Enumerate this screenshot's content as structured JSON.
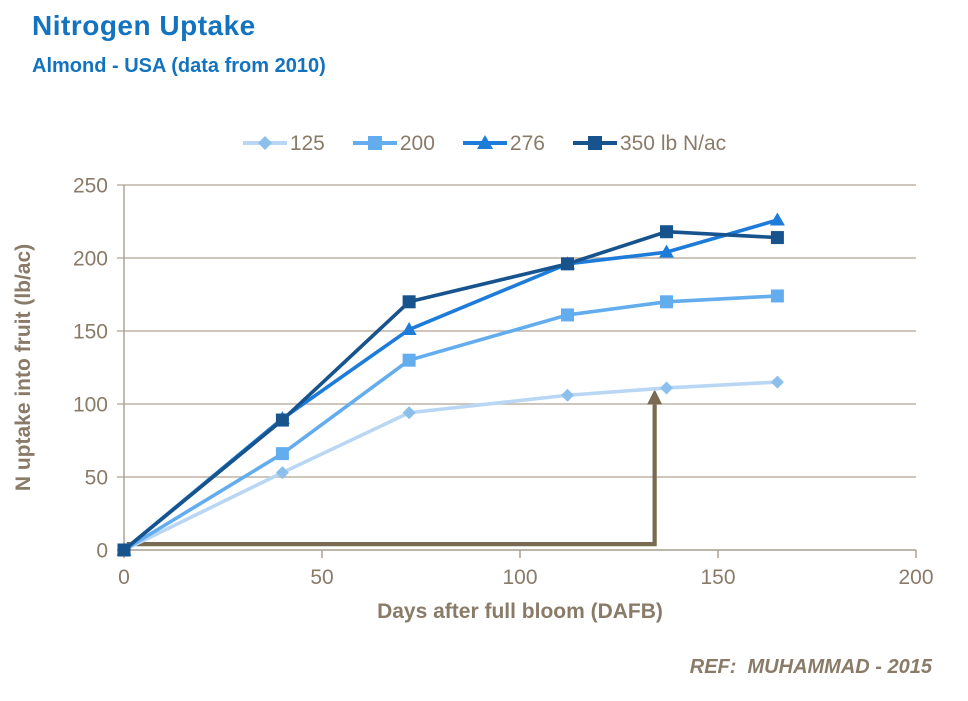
{
  "footer": {
    "ref": "REF:  MUHAMMAD - 2015"
  },
  "colors": {
    "title": "#1373BE",
    "text": "#8A7B69",
    "gridline": "#BDB4A6",
    "axis": "#A79D8D",
    "background": "#FFFFFF"
  },
  "chart_data": {
    "type": "line",
    "title": "Nitrogen Uptake",
    "subtitle": "Almond - USA (data from 2010)",
    "xlabel": "Days after full bloom (DAFB)",
    "ylabel": "N uptake into fruit (lb/ac)",
    "xlim": [
      0,
      200
    ],
    "ylim": [
      0,
      250
    ],
    "xticks": [
      0,
      50,
      100,
      150,
      200
    ],
    "yticks": [
      0,
      50,
      100,
      150,
      200,
      250
    ],
    "grid": "horizontal-only",
    "legend_position": "top-center",
    "x": [
      0,
      40,
      72,
      112,
      137,
      165
    ],
    "series": [
      {
        "name": "125",
        "marker": "diamond",
        "line_color": "#B9D7F4",
        "marker_color": "#8CC0EC",
        "values": [
          0,
          53,
          94,
          106,
          111,
          115
        ]
      },
      {
        "name": "200",
        "marker": "square",
        "line_color": "#63ADEF",
        "marker_color": "#63ADEF",
        "values": [
          0,
          66,
          130,
          161,
          170,
          174
        ]
      },
      {
        "name": "276",
        "marker": "triangle",
        "line_color": "#1D7CD9",
        "marker_color": "#1D7CD9",
        "values": [
          0,
          90,
          151,
          196,
          204,
          226
        ]
      },
      {
        "name": "350 lb N/ac",
        "marker": "square",
        "line_color": "#17538C",
        "marker_color": "#17538C",
        "values": [
          0,
          89,
          170,
          196,
          218,
          214
        ]
      }
    ],
    "annotation": {
      "description": "arrow from x-axis along y~4 then up to the 125 lb N/ac curve at ~135 DAFB",
      "color": "#7A6A52",
      "horizontal_y": 4,
      "x_from": 0.7,
      "x_corner": 134,
      "arrow_tip_y": 110
    }
  }
}
